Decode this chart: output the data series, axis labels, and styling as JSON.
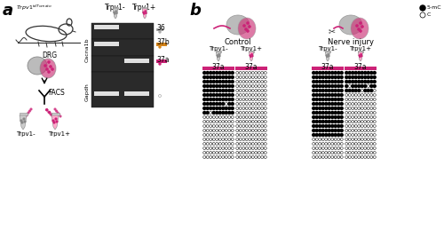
{
  "panel_a_label": "a",
  "panel_b_label": "b",
  "background_color": "#ffffff",
  "pink_color": "#cc2277",
  "orange_color": "#d4841a",
  "gray_color": "#999999",
  "gel_bg": "#2a2a2a",
  "gel_band": "#e8e8e8",
  "control_trpv1minus_pattern": [
    [
      1,
      1,
      1,
      1,
      1,
      1,
      1,
      1,
      1,
      1
    ],
    [
      1,
      1,
      1,
      1,
      1,
      1,
      1,
      1,
      1,
      1
    ],
    [
      1,
      1,
      1,
      1,
      1,
      1,
      1,
      1,
      1,
      1
    ],
    [
      1,
      1,
      1,
      1,
      1,
      1,
      1,
      1,
      1,
      1
    ],
    [
      1,
      1,
      1,
      1,
      1,
      1,
      1,
      1,
      1,
      1
    ],
    [
      1,
      1,
      1,
      1,
      1,
      1,
      1,
      1,
      1,
      1
    ],
    [
      1,
      1,
      1,
      1,
      1,
      1,
      1,
      1,
      1,
      1
    ],
    [
      1,
      1,
      1,
      1,
      1,
      1,
      1,
      0,
      1,
      1
    ],
    [
      1,
      1,
      1,
      1,
      1,
      1,
      1,
      1,
      1,
      1
    ],
    [
      1,
      1,
      0,
      1,
      1,
      1,
      1,
      1,
      1,
      1
    ],
    [
      0,
      0,
      0,
      0,
      0,
      0,
      0,
      0,
      0,
      0
    ],
    [
      0,
      0,
      0,
      0,
      0,
      0,
      0,
      0,
      0,
      0
    ],
    [
      0,
      0,
      0,
      0,
      0,
      0,
      0,
      0,
      0,
      0
    ],
    [
      0,
      0,
      0,
      0,
      0,
      0,
      0,
      0,
      0,
      0
    ],
    [
      0,
      0,
      0,
      0,
      0,
      0,
      0,
      0,
      0,
      0
    ],
    [
      0,
      0,
      0,
      0,
      0,
      0,
      0,
      0,
      0,
      0
    ],
    [
      0,
      0,
      0,
      0,
      0,
      0,
      0,
      0,
      0,
      0
    ],
    [
      0,
      0,
      0,
      0,
      0,
      0,
      0,
      0,
      0,
      0
    ],
    [
      0,
      0,
      0,
      0,
      0,
      0,
      0,
      0,
      0,
      0
    ],
    [
      0,
      0,
      0,
      0,
      0,
      0,
      0,
      0,
      0,
      0
    ]
  ],
  "control_trpv1plus_pattern": [
    [
      0,
      0,
      0,
      0,
      0,
      0,
      0,
      0,
      0,
      0
    ],
    [
      0,
      0,
      0,
      0,
      0,
      0,
      0,
      0,
      0,
      0
    ],
    [
      0,
      0,
      0,
      0,
      0,
      0,
      0,
      0,
      0,
      0
    ],
    [
      0,
      0,
      0,
      0,
      0,
      0,
      0,
      0,
      0,
      0
    ],
    [
      0,
      0,
      0,
      0,
      0,
      0,
      0,
      0,
      0,
      0
    ],
    [
      0,
      0,
      0,
      0,
      0,
      0,
      0,
      0,
      0,
      0
    ],
    [
      0,
      0,
      0,
      0,
      0,
      0,
      0,
      0,
      0,
      0
    ],
    [
      0,
      0,
      0,
      0,
      0,
      0,
      0,
      0,
      0,
      0
    ],
    [
      0,
      0,
      0,
      0,
      0,
      0,
      0,
      0,
      0,
      0
    ],
    [
      0,
      0,
      0,
      0,
      0,
      0,
      0,
      0,
      0,
      0
    ],
    [
      0,
      0,
      0,
      0,
      0,
      0,
      0,
      0,
      0,
      0
    ],
    [
      0,
      0,
      0,
      0,
      0,
      0,
      0,
      0,
      0,
      0
    ],
    [
      0,
      0,
      0,
      0,
      0,
      0,
      0,
      0,
      0,
      0
    ],
    [
      0,
      0,
      0,
      0,
      0,
      0,
      0,
      0,
      0,
      0
    ],
    [
      0,
      0,
      0,
      0,
      0,
      0,
      0,
      0,
      0,
      0
    ],
    [
      0,
      0,
      0,
      0,
      0,
      0,
      0,
      0,
      0,
      0
    ],
    [
      0,
      0,
      0,
      0,
      0,
      0,
      0,
      0,
      0,
      0
    ],
    [
      0,
      0,
      0,
      0,
      0,
      0,
      0,
      0,
      0,
      0
    ],
    [
      0,
      0,
      0,
      0,
      0,
      0,
      0,
      0,
      0,
      0
    ],
    [
      0,
      0,
      0,
      0,
      0,
      0,
      0,
      0,
      0,
      0
    ]
  ],
  "injury_trpv1minus_pattern": [
    [
      1,
      1,
      1,
      1,
      1,
      1,
      1,
      1,
      1,
      1
    ],
    [
      1,
      1,
      1,
      1,
      1,
      1,
      1,
      1,
      1,
      1
    ],
    [
      1,
      1,
      1,
      1,
      1,
      1,
      1,
      1,
      1,
      1
    ],
    [
      1,
      1,
      1,
      1,
      1,
      1,
      1,
      1,
      1,
      1
    ],
    [
      1,
      1,
      1,
      1,
      1,
      1,
      1,
      1,
      1,
      1
    ],
    [
      1,
      1,
      1,
      1,
      1,
      1,
      1,
      1,
      1,
      1
    ],
    [
      1,
      1,
      1,
      1,
      1,
      1,
      1,
      1,
      1,
      1
    ],
    [
      1,
      1,
      1,
      1,
      1,
      1,
      1,
      1,
      1,
      1
    ],
    [
      1,
      1,
      1,
      1,
      1,
      1,
      1,
      1,
      1,
      1
    ],
    [
      1,
      1,
      1,
      1,
      1,
      1,
      1,
      1,
      1,
      1
    ],
    [
      1,
      1,
      1,
      1,
      1,
      1,
      1,
      1,
      1,
      1
    ],
    [
      1,
      1,
      1,
      1,
      1,
      1,
      1,
      1,
      1,
      1
    ],
    [
      1,
      1,
      1,
      1,
      1,
      1,
      1,
      1,
      1,
      1
    ],
    [
      1,
      1,
      1,
      1,
      1,
      1,
      1,
      1,
      1,
      1
    ],
    [
      1,
      1,
      1,
      1,
      1,
      1,
      1,
      1,
      1,
      1
    ],
    [
      0,
      0,
      0,
      0,
      0,
      0,
      0,
      0,
      0,
      0
    ],
    [
      0,
      0,
      0,
      0,
      0,
      0,
      0,
      0,
      0,
      0
    ],
    [
      0,
      0,
      0,
      0,
      0,
      0,
      0,
      0,
      0,
      0
    ],
    [
      0,
      0,
      0,
      0,
      0,
      0,
      0,
      0,
      0,
      0
    ],
    [
      0,
      0,
      0,
      0,
      0,
      0,
      0,
      0,
      0,
      0
    ]
  ],
  "injury_trpv1plus_pattern": [
    [
      1,
      1,
      1,
      1,
      1,
      1,
      1,
      1,
      1,
      1
    ],
    [
      1,
      1,
      1,
      1,
      1,
      1,
      1,
      1,
      1,
      1
    ],
    [
      1,
      1,
      1,
      1,
      1,
      1,
      1,
      1,
      1,
      1
    ],
    [
      1,
      0,
      1,
      1,
      1,
      1,
      1,
      0,
      1,
      1
    ],
    [
      1,
      1,
      1,
      1,
      1,
      0,
      1,
      1,
      1,
      0
    ],
    [
      0,
      0,
      0,
      0,
      0,
      0,
      0,
      0,
      0,
      0
    ],
    [
      0,
      0,
      0,
      0,
      0,
      0,
      0,
      0,
      0,
      0
    ],
    [
      0,
      0,
      0,
      0,
      0,
      0,
      0,
      0,
      0,
      0
    ],
    [
      0,
      0,
      0,
      0,
      0,
      0,
      0,
      0,
      0,
      0
    ],
    [
      0,
      0,
      0,
      0,
      0,
      0,
      0,
      0,
      0,
      0
    ],
    [
      0,
      0,
      0,
      0,
      0,
      0,
      0,
      0,
      0,
      0
    ],
    [
      0,
      0,
      0,
      0,
      0,
      0,
      0,
      0,
      0,
      0
    ],
    [
      0,
      0,
      0,
      0,
      0,
      0,
      0,
      0,
      0,
      0
    ],
    [
      0,
      0,
      0,
      0,
      0,
      0,
      0,
      0,
      0,
      0
    ],
    [
      0,
      0,
      0,
      0,
      0,
      0,
      0,
      0,
      0,
      0
    ],
    [
      0,
      0,
      0,
      0,
      0,
      0,
      0,
      0,
      0,
      0
    ],
    [
      0,
      0,
      0,
      0,
      0,
      0,
      0,
      0,
      0,
      0
    ],
    [
      0,
      0,
      0,
      0,
      0,
      0,
      0,
      0,
      0,
      0
    ],
    [
      0,
      0,
      0,
      0,
      0,
      0,
      0,
      0,
      0,
      0
    ],
    [
      0,
      0,
      0,
      0,
      0,
      0,
      0,
      0,
      0,
      0
    ]
  ]
}
